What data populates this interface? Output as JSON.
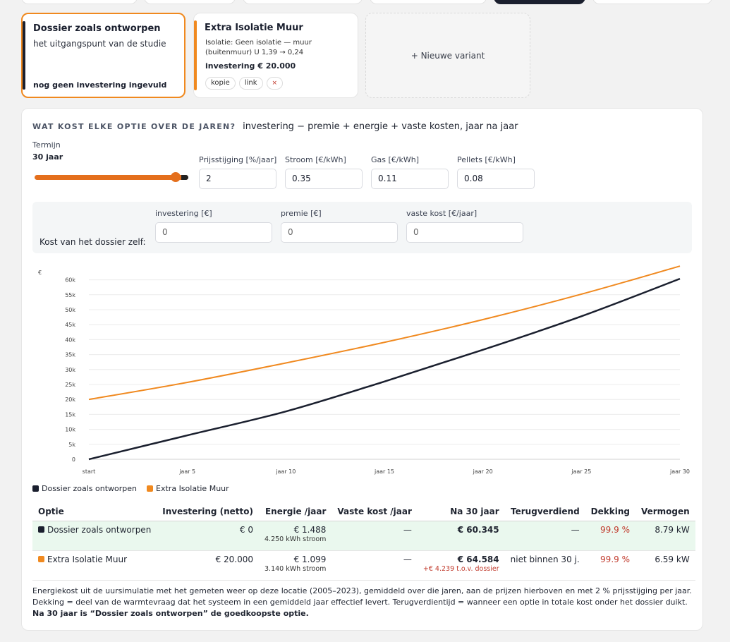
{
  "variants": [
    {
      "title": "Dossier zoals ontworpen",
      "subtitle": "het uitgangspunt van de studie",
      "footer": "nog geen investering ingevuld",
      "color": "#1a1f2e"
    },
    {
      "title": "Extra Isolatie Muur",
      "detail": "Isolatie: Geen isolatie — muur (buitenmuur) U 1,39 → 0,24",
      "investment": "investering € 20.000",
      "chip_copy": "kopie",
      "chip_link": "link",
      "chip_delete": "×",
      "color": "#f0891f"
    }
  ],
  "new_variant_label": "+ Nieuwe variant",
  "section": {
    "kicker": "WAT KOST ELKE OPTIE OVER DE JAREN?",
    "description": "investering − premie + energie + vaste kosten, jaar na jaar"
  },
  "controls": {
    "termijn_label": "Termijn",
    "termijn_value": "30 jaar",
    "termijn_years": 30,
    "termijn_max_years": 30,
    "price_increase_label": "Prijsstijging [%/jaar]",
    "price_increase_value": "2",
    "electricity_label": "Stroom [€/kWh]",
    "electricity_value": "0.35",
    "gas_label": "Gas [€/kWh]",
    "gas_value": "0.11",
    "pellets_label": "Pellets [€/kWh]",
    "pellets_value": "0.08"
  },
  "dossier_costs": {
    "title": "Kost van het dossier zelf:",
    "investment_label": "investering [€]",
    "investment_value": "0",
    "premium_label": "premie [€]",
    "premium_value": "0",
    "fixed_label": "vaste kost [€/jaar]",
    "fixed_value": "0"
  },
  "chart_data": {
    "type": "line",
    "ylabel": "€",
    "x": [
      0,
      5,
      10,
      15,
      20,
      25,
      30
    ],
    "x_tick_labels": [
      "start",
      "jaar 5",
      "jaar 10",
      "jaar 15",
      "jaar 20",
      "jaar 25",
      "jaar 30"
    ],
    "y_ticks": [
      0,
      5000,
      10000,
      15000,
      20000,
      25000,
      30000,
      35000,
      40000,
      45000,
      50000,
      55000,
      60000
    ],
    "y_tick_labels": [
      "0",
      "5k",
      "10k",
      "15k",
      "20k",
      "25k",
      "30k",
      "35k",
      "40k",
      "45k",
      "50k",
      "55k",
      "60k"
    ],
    "ylim": [
      0,
      62500
    ],
    "grid": true,
    "legend_position": "bottom-left",
    "series": [
      {
        "name": "Dossier zoals ontworpen",
        "color": "#1a1f2e",
        "values": [
          0,
          8000,
          16000,
          26000,
          36600,
          47800,
          60345
        ]
      },
      {
        "name": "Extra Isolatie Muur",
        "color": "#f0891f",
        "values": [
          20000,
          25700,
          32200,
          39100,
          46700,
          55200,
          64584
        ]
      }
    ]
  },
  "table": {
    "headers": [
      "Optie",
      "Investering (netto)",
      "Energie /jaar",
      "Vaste kost /jaar",
      "Na 30 jaar",
      "Terugverdiend",
      "Dekking",
      "Vermogen"
    ],
    "rows": [
      {
        "name": "Dossier zoals ontworpen",
        "color": "#1a1f2e",
        "investment": "€ 0",
        "energy": "€ 1.488",
        "energy_sub": "4.250 kWh stroom",
        "fixed": "—",
        "total": "€ 60.345",
        "total_sub": "",
        "payback": "—",
        "coverage": "99.9 %",
        "power": "8.79 kW"
      },
      {
        "name": "Extra Isolatie Muur",
        "color": "#f0891f",
        "investment": "€ 20.000",
        "energy": "€ 1.099",
        "energy_sub": "3.140 kWh stroom",
        "fixed": "—",
        "total": "€ 64.584",
        "total_sub": "+€ 4.239 t.o.v. dossier",
        "payback": "niet binnen 30 j.",
        "coverage": "99.9 %",
        "power": "6.59 kW"
      }
    ]
  },
  "footnote": {
    "text": "Energiekost uit de uursimulatie met het gemeten weer op deze locatie (2005–2023), gemiddeld over die jaren, aan de prijzen hierboven en met 2 % prijsstijging per jaar. Dekking = deel van de warmtevraag dat het systeem in een gemiddeld jaar effectief levert. Terugverdientijd = wanneer een optie in totale kost onder het dossier duikt.",
    "conclusion": "Na 30 jaar is “Dossier zoals ontworpen” de goedkoopste optie."
  }
}
